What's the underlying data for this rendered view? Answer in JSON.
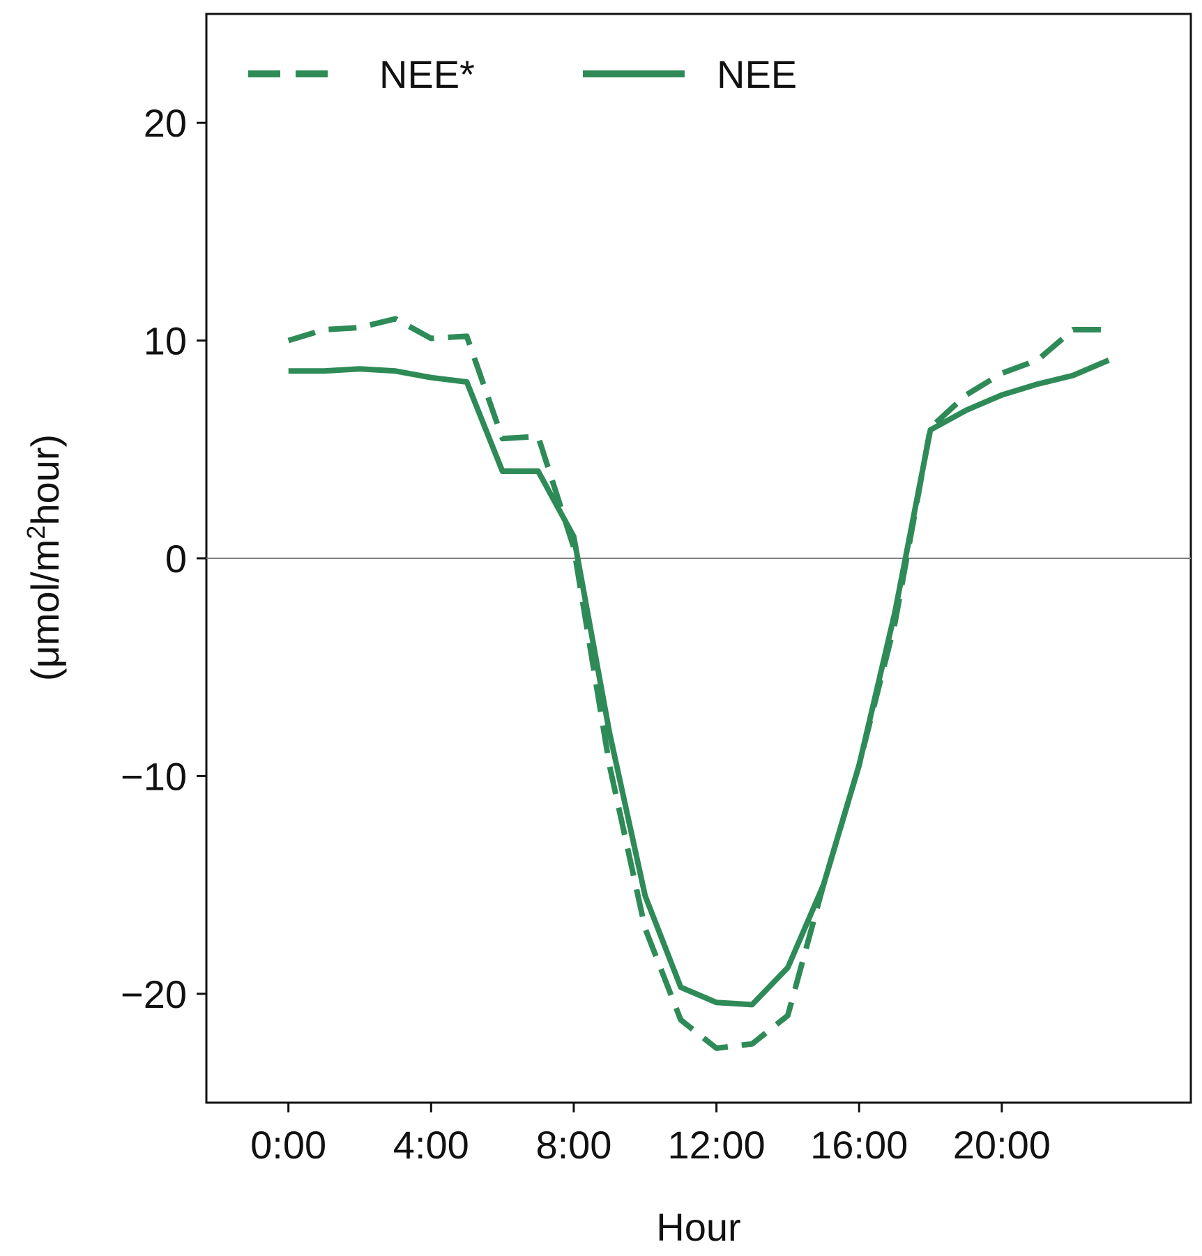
{
  "chart_data": {
    "type": "line",
    "title": "",
    "xlabel": "Hour",
    "ylabel": "(μmol/m²hour)",
    "ylabel_parts": {
      "before": "(μmol/m",
      "sup": "2",
      "after": "hour)"
    },
    "xlim": [
      -2.3,
      25.3
    ],
    "ylim": [
      -25,
      25
    ],
    "xticks": [
      0,
      4,
      8,
      12,
      16,
      20
    ],
    "xtick_labels": [
      "0:00",
      "4:00",
      "8:00",
      "12:00",
      "16:00",
      "20:00"
    ],
    "yticks": [
      -20,
      -10,
      0,
      10,
      20
    ],
    "ytick_labels": [
      "−20",
      "−10",
      "0",
      "10",
      "20"
    ],
    "grid": false,
    "zero_line": true,
    "legend": {
      "placement": "top-left",
      "orientation": "horizontal"
    },
    "x": [
      0,
      1,
      2,
      3,
      4,
      5,
      6,
      7,
      8,
      9,
      10,
      11,
      12,
      13,
      14,
      15,
      16,
      17,
      18,
      19,
      20,
      21,
      22,
      23
    ],
    "series": [
      {
        "name": "NEE*",
        "style": "dashed",
        "color": "#2e8b57",
        "values": [
          10.0,
          10.5,
          10.6,
          11.0,
          10.1,
          10.2,
          5.5,
          5.6,
          0.5,
          -9.5,
          -17.0,
          -21.2,
          -22.5,
          -22.3,
          -21.0,
          -15.0,
          -9.5,
          -3.0,
          6.0,
          7.5,
          8.5,
          9.1,
          10.5,
          10.5
        ]
      },
      {
        "name": "NEE",
        "style": "solid",
        "color": "#2e8b57",
        "values": [
          8.6,
          8.6,
          8.7,
          8.6,
          8.3,
          8.1,
          4.0,
          4.0,
          1.0,
          -8.0,
          -15.5,
          -19.7,
          -20.4,
          -20.5,
          -18.8,
          -15.0,
          -9.5,
          -2.5,
          5.9,
          6.8,
          7.5,
          8.0,
          8.4,
          9.1
        ]
      }
    ]
  }
}
